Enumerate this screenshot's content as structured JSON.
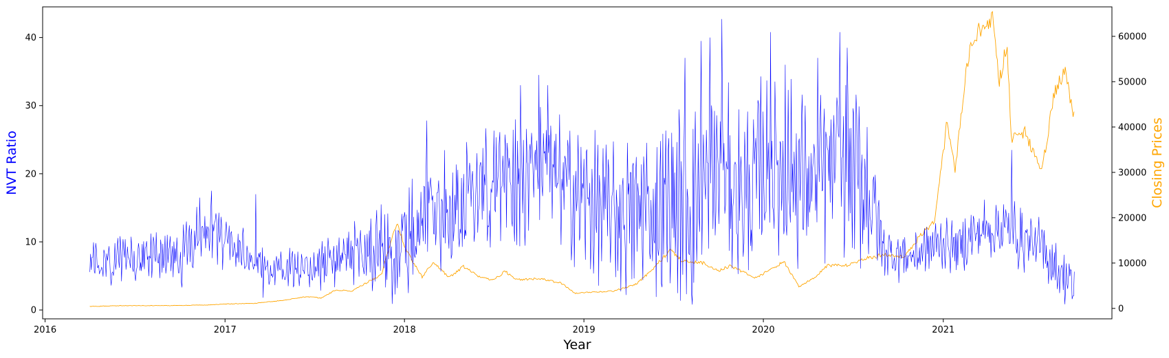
{
  "chart_data": {
    "type": "line",
    "xlabel": "Year",
    "x_ticks": [
      "2016",
      "2017",
      "2018",
      "2019",
      "2020",
      "2021"
    ],
    "x_range": [
      "2015-12-27",
      "2021-12-10"
    ],
    "y_left": {
      "label": "NVT Ratio",
      "color": "#0000ff",
      "range": [
        -1.3,
        44.5
      ],
      "ticks": [
        0,
        10,
        20,
        30,
        40
      ]
    },
    "y_right": {
      "label": "Closing Prices",
      "color": "#ffa500",
      "range": [
        -2300,
        66500
      ],
      "ticks": [
        0,
        10000,
        20000,
        30000,
        40000,
        50000,
        60000
      ]
    },
    "series": [
      {
        "axis": "left",
        "color": "#0000ff",
        "points": [
          [
            "2016-04-01",
            8
          ],
          [
            "2016-05-01",
            7
          ],
          [
            "2016-06-01",
            7.5
          ],
          [
            "2016-07-01",
            8
          ],
          [
            "2016-08-01",
            8.5
          ],
          [
            "2016-09-01",
            9
          ],
          [
            "2016-10-01",
            8
          ],
          [
            "2016-11-01",
            10
          ],
          [
            "2016-12-01",
            11.5
          ],
          [
            "2017-01-01",
            10
          ],
          [
            "2017-02-01",
            9
          ],
          [
            "2017-03-01",
            7
          ],
          [
            "2017-04-01",
            6
          ],
          [
            "2017-05-01",
            6
          ],
          [
            "2017-06-01",
            6.5
          ],
          [
            "2017-07-01",
            6.5
          ],
          [
            "2017-08-01",
            7
          ],
          [
            "2017-09-01",
            8
          ],
          [
            "2017-10-01",
            9
          ],
          [
            "2017-11-01",
            8
          ],
          [
            "2017-12-01",
            7
          ],
          [
            "2018-01-01",
            9
          ],
          [
            "2018-02-01",
            13
          ],
          [
            "2018-03-01",
            16
          ],
          [
            "2018-04-01",
            15
          ],
          [
            "2018-05-01",
            15
          ],
          [
            "2018-06-01",
            16
          ],
          [
            "2018-07-01",
            18
          ],
          [
            "2018-08-01",
            19
          ],
          [
            "2018-09-01",
            19
          ],
          [
            "2018-10-01",
            20
          ],
          [
            "2018-11-01",
            19
          ],
          [
            "2018-12-01",
            18
          ],
          [
            "2019-01-01",
            16
          ],
          [
            "2019-02-01",
            15
          ],
          [
            "2019-03-01",
            14
          ],
          [
            "2019-04-01",
            14
          ],
          [
            "2019-05-01",
            15
          ],
          [
            "2019-06-01",
            14
          ],
          [
            "2019-07-01",
            16
          ],
          [
            "2019-08-01",
            15
          ],
          [
            "2019-09-01",
            18
          ],
          [
            "2019-10-01",
            20
          ],
          [
            "2019-11-01",
            18
          ],
          [
            "2019-12-01",
            17
          ],
          [
            "2020-01-01",
            21
          ],
          [
            "2020-02-01",
            20
          ],
          [
            "2020-03-01",
            20
          ],
          [
            "2020-04-01",
            19
          ],
          [
            "2020-05-01",
            20
          ],
          [
            "2020-06-01",
            21
          ],
          [
            "2020-07-01",
            20
          ],
          [
            "2020-08-01",
            18
          ],
          [
            "2020-09-01",
            9
          ],
          [
            "2020-10-01",
            8
          ],
          [
            "2020-11-01",
            8
          ],
          [
            "2020-12-01",
            9
          ],
          [
            "2021-01-01",
            10
          ],
          [
            "2021-02-01",
            9
          ],
          [
            "2021-03-01",
            11
          ],
          [
            "2021-04-01",
            12
          ],
          [
            "2021-05-01",
            12
          ],
          [
            "2021-06-01",
            11
          ],
          [
            "2021-07-01",
            10
          ],
          [
            "2021-08-01",
            8
          ],
          [
            "2021-09-01",
            5
          ],
          [
            "2021-09-25",
            4
          ]
        ],
        "spread": [
          [
            "2016-04-01",
            2.5
          ],
          [
            "2016-11-01",
            4
          ],
          [
            "2017-04-01",
            2
          ],
          [
            "2017-09-01",
            3.5
          ],
          [
            "2018-02-01",
            7
          ],
          [
            "2019-01-01",
            8
          ],
          [
            "2019-08-01",
            11
          ],
          [
            "2020-08-01",
            10
          ],
          [
            "2020-09-01",
            3
          ],
          [
            "2021-01-01",
            3
          ],
          [
            "2021-06-01",
            4
          ],
          [
            "2021-09-25",
            3
          ]
        ],
        "spikes": [
          [
            "2016-11-10",
            16.5
          ],
          [
            "2016-12-05",
            17.5
          ],
          [
            "2017-03-05",
            17
          ],
          [
            "2017-11-15",
            15.5
          ],
          [
            "2018-02-15",
            27.8
          ],
          [
            "2018-08-25",
            33
          ],
          [
            "2018-10-01",
            34.5
          ],
          [
            "2018-10-20",
            33
          ],
          [
            "2019-07-25",
            37
          ],
          [
            "2019-08-28",
            39.5
          ],
          [
            "2019-09-15",
            40
          ],
          [
            "2019-10-08",
            42.7
          ],
          [
            "2020-01-15",
            40.8
          ],
          [
            "2020-02-15",
            36
          ],
          [
            "2020-04-20",
            37
          ],
          [
            "2020-06-05",
            40.8
          ],
          [
            "2020-06-20",
            38.5
          ],
          [
            "2021-05-20",
            23.5
          ]
        ],
        "dips": [
          [
            "2017-03-20",
            1.8
          ],
          [
            "2019-08-10",
            0.8
          ],
          [
            "2021-09-20",
            1.6
          ]
        ]
      },
      {
        "axis": "right",
        "color": "#ffa500",
        "points": [
          [
            "2016-04-01",
            420
          ],
          [
            "2016-06-01",
            600
          ],
          [
            "2016-09-01",
            610
          ],
          [
            "2016-12-01",
            760
          ],
          [
            "2017-01-01",
            980
          ],
          [
            "2017-03-01",
            1100
          ],
          [
            "2017-05-01",
            1800
          ],
          [
            "2017-06-15",
            2600
          ],
          [
            "2017-07-15",
            2300
          ],
          [
            "2017-08-15",
            4100
          ],
          [
            "2017-09-15",
            3800
          ],
          [
            "2017-10-15",
            5600
          ],
          [
            "2017-11-15",
            7500
          ],
          [
            "2017-12-17",
            19300
          ],
          [
            "2018-01-01",
            13500
          ],
          [
            "2018-02-06",
            6900
          ],
          [
            "2018-03-01",
            10300
          ],
          [
            "2018-04-01",
            6800
          ],
          [
            "2018-05-01",
            9200
          ],
          [
            "2018-06-01",
            7000
          ],
          [
            "2018-07-01",
            6300
          ],
          [
            "2018-07-25",
            8200
          ],
          [
            "2018-08-15",
            6300
          ],
          [
            "2018-10-01",
            6600
          ],
          [
            "2018-11-15",
            5600
          ],
          [
            "2018-12-15",
            3300
          ],
          [
            "2019-01-15",
            3600
          ],
          [
            "2019-03-01",
            3800
          ],
          [
            "2019-04-15",
            5200
          ],
          [
            "2019-05-15",
            8000
          ],
          [
            "2019-06-26",
            12900
          ],
          [
            "2019-07-20",
            10500
          ],
          [
            "2019-09-01",
            10000
          ],
          [
            "2019-10-01",
            8300
          ],
          [
            "2019-10-26",
            9400
          ],
          [
            "2019-12-17",
            6700
          ],
          [
            "2020-02-12",
            10300
          ],
          [
            "2020-03-13",
            4800
          ],
          [
            "2020-04-15",
            6800
          ],
          [
            "2020-05-10",
            9500
          ],
          [
            "2020-06-15",
            9400
          ],
          [
            "2020-07-27",
            11000
          ],
          [
            "2020-09-01",
            11800
          ],
          [
            "2020-10-15",
            11500
          ],
          [
            "2020-11-15",
            16000
          ],
          [
            "2020-12-15",
            19500
          ],
          [
            "2021-01-08",
            40600
          ],
          [
            "2021-01-25",
            31000
          ],
          [
            "2021-02-20",
            55000
          ],
          [
            "2021-03-13",
            61000
          ],
          [
            "2021-04-14",
            63500
          ],
          [
            "2021-04-25",
            50000
          ],
          [
            "2021-05-10",
            58000
          ],
          [
            "2021-05-20",
            37000
          ],
          [
            "2021-06-15",
            39000
          ],
          [
            "2021-07-20",
            30000
          ],
          [
            "2021-08-14",
            47000
          ],
          [
            "2021-09-06",
            52600
          ],
          [
            "2021-09-24",
            42000
          ]
        ]
      }
    ]
  }
}
